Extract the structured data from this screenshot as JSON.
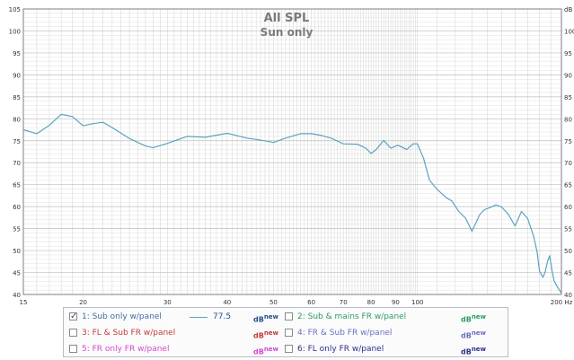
{
  "colors": {
    "series_line": "#5aa4c0",
    "grid": "#d9d9d9",
    "border": "#7f7f7f",
    "title": "#7a7a7a"
  },
  "chart_data": {
    "type": "line",
    "title": "All SPL",
    "subtitle": "Sun only",
    "x_scale": "log",
    "xlim": [
      15,
      200
    ],
    "ylim": [
      40,
      105
    ],
    "y_unit": "dB",
    "x_unit": "Hz",
    "x_ticks": [
      "15",
      "20",
      "30",
      "40",
      "50",
      "60",
      "70",
      "80",
      "90",
      "100",
      "200 Hz"
    ],
    "y_ticks": [
      "40",
      "45",
      "50",
      "55",
      "60",
      "65",
      "70",
      "75",
      "80",
      "85",
      "90",
      "95",
      "100",
      "105"
    ],
    "y_ticks_right_unit": "dB",
    "grid": true,
    "series": [
      {
        "name": "1: Sub only w/panel",
        "x": [
          15,
          16,
          17,
          18,
          19,
          20,
          21,
          22,
          23,
          25,
          27,
          28,
          30,
          33,
          36,
          40,
          44,
          48,
          50,
          53,
          57,
          60,
          63,
          66,
          70,
          75,
          78,
          80,
          82,
          85,
          88,
          91,
          95,
          98,
          100,
          103,
          106,
          110,
          115,
          118,
          122,
          126,
          130,
          135,
          138,
          142,
          146,
          150,
          155,
          160,
          165,
          170,
          175,
          178,
          180,
          183,
          185,
          187,
          189,
          191,
          193,
          196,
          200
        ],
        "y": [
          77.5,
          76.6,
          78.5,
          81.0,
          80.5,
          78.4,
          78.9,
          79.2,
          78.0,
          75.5,
          73.8,
          73.4,
          74.4,
          76.0,
          75.8,
          76.7,
          75.6,
          75.0,
          74.6,
          75.6,
          76.6,
          76.6,
          76.2,
          75.6,
          74.3,
          74.2,
          73.3,
          72.1,
          73.0,
          75.1,
          73.3,
          74.0,
          73.0,
          74.3,
          74.3,
          71.0,
          66.0,
          63.9,
          62.0,
          61.3,
          58.9,
          57.4,
          54.4,
          58.2,
          59.3,
          59.8,
          60.4,
          59.9,
          58.2,
          55.6,
          58.9,
          57.3,
          53.2,
          49.5,
          45.3,
          43.9,
          45.2,
          47.5,
          48.8,
          45.6,
          43.1,
          41.8,
          40.3
        ]
      }
    ]
  },
  "legend": {
    "items": [
      {
        "label": "1: Sub only w/panel",
        "checked": true,
        "color": "#3e6fa8",
        "value": "77.5",
        "unit": "dB",
        "unit_sup": "new",
        "unit_color": "#1f4f8a"
      },
      {
        "label": "2: Sub & mains FR w/panel",
        "checked": false,
        "color": "#2f9a63",
        "value": "",
        "unit": "dB",
        "unit_sup": "new",
        "unit_color": "#2f9a63"
      },
      {
        "label": "3: FL & Sub FR w/panel",
        "checked": false,
        "color": "#c23b3b",
        "value": "",
        "unit": "dB",
        "unit_sup": "new",
        "unit_color": "#c23b3b"
      },
      {
        "label": "4: FR & Sub FR w/panel",
        "checked": false,
        "color": "#6a6fc4",
        "value": "",
        "unit": "dB",
        "unit_sup": "new",
        "unit_color": "#6a6fc4"
      },
      {
        "label": "5: FR only FR w/panel",
        "checked": false,
        "color": "#d04ad0",
        "value": "",
        "unit": "dB",
        "unit_sup": "new",
        "unit_color": "#d04ad0"
      },
      {
        "label": "6: FL only FR w/panel",
        "checked": false,
        "color": "#2e2e8a",
        "value": "",
        "unit": "dB",
        "unit_sup": "new",
        "unit_color": "#2e2e8a"
      }
    ]
  }
}
